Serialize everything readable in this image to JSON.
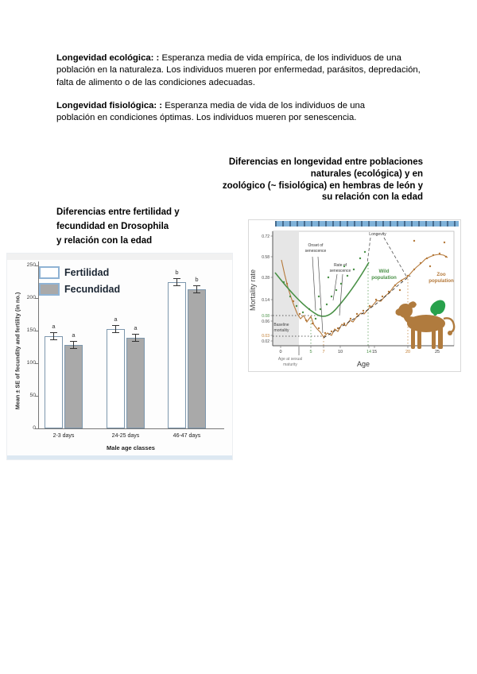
{
  "paragraphs": [
    {
      "lead": "Longevidad ecológica: :",
      "body": " Esperanza media de vida empírica, de los individuos de una población en la naturaleza. Los individuos mueren por enfermedad, parásitos, depredación, falta de alimento o de las condiciones adecuadas."
    },
    {
      "lead": "Longevidad fisiológica: :",
      "body": " Esperanza media de vida de los individuos de una población en condiciones óptimas. Los individuos mueren por senescencia."
    }
  ],
  "heading_right": {
    "lines": [
      "Diferencias en longevidad entre poblaciones",
      "naturales (ecológica) y en",
      "zoológico (~ fisiológica) en hembras de león y",
      "su relación con la edad"
    ]
  },
  "heading_left": {
    "lines": [
      "Diferencias entre fertilidad y",
      "fecundidad en Drosophila",
      "y relación con la edad"
    ]
  },
  "chart_data": [
    {
      "type": "bar",
      "categories": [
        "2-3 days",
        "24-25 days",
        "46-47 days"
      ],
      "series": [
        {
          "name": "Fertilidad",
          "values": [
            142,
            152,
            225
          ],
          "sig": [
            "a",
            "a",
            "b"
          ],
          "fill": "#ffffff",
          "border": "#7d97ad"
        },
        {
          "name": "Fecundidad",
          "values": [
            128,
            139,
            213
          ],
          "sig": [
            "a",
            "a",
            "b"
          ],
          "fill": "#a9a9a9",
          "border": "#7d97ad"
        }
      ],
      "error_se": 5,
      "xlabel": "Male age classes",
      "ylabel": "Mean ± SE of fecundity and fertility (in no.)",
      "yticks": [
        0,
        50,
        100,
        150,
        200,
        250
      ],
      "ylim": [
        0,
        260
      ],
      "legend_position": "top-left",
      "grid": false
    },
    {
      "type": "line",
      "xlabel": "Age",
      "ylabel": "Mortality rate",
      "yscale": "log",
      "xticks": [
        {
          "label": "0",
          "color": "#333333"
        },
        {
          "label": "5",
          "color": "#4a9147"
        },
        {
          "label": "7",
          "color": "#c07b2e"
        },
        {
          "label": "10",
          "color": "#333333"
        },
        {
          "label": "14",
          "color": "#4a9147"
        },
        {
          "label": "15",
          "color": "#333333"
        },
        {
          "label": "20",
          "color": "#c07b2e"
        },
        {
          "label": "25",
          "color": "#333333"
        }
      ],
      "yticks": [
        {
          "label": "0.72",
          "color": "#444444"
        },
        {
          "label": "0.58",
          "color": "#444444"
        },
        {
          "label": "0.28",
          "color": "#444444"
        },
        {
          "label": "0.14",
          "color": "#444444"
        },
        {
          "label": "0.08",
          "color": "#4a9147"
        },
        {
          "label": "0.06",
          "color": "#444444"
        },
        {
          "label": "0.03",
          "color": "#c07b2e"
        },
        {
          "label": "0.02",
          "color": "#444444"
        }
      ],
      "series": [
        {
          "name": "Wild population",
          "color": "#4a9147",
          "x": [
            0,
            1,
            2,
            3,
            4,
            5,
            6,
            7,
            8,
            9,
            10,
            11,
            12,
            13,
            14
          ],
          "y": [
            0.28,
            0.22,
            0.17,
            0.13,
            0.1,
            0.08,
            0.08,
            0.09,
            0.1,
            0.12,
            0.15,
            0.19,
            0.25,
            0.33,
            0.45
          ]
        },
        {
          "name": "Zoo population",
          "color": "#b5793a",
          "x": [
            0,
            1,
            2,
            3,
            4,
            5,
            6,
            7,
            8,
            9,
            10,
            11,
            12,
            13,
            14,
            15,
            16,
            17,
            18,
            19,
            20,
            21,
            22,
            23,
            24,
            25,
            26
          ],
          "y": [
            0.55,
            0.3,
            0.18,
            0.11,
            0.07,
            0.06,
            0.04,
            0.03,
            0.04,
            0.04,
            0.05,
            0.05,
            0.06,
            0.07,
            0.08,
            0.1,
            0.12,
            0.14,
            0.17,
            0.22,
            0.28,
            0.33,
            0.4,
            0.48,
            0.55,
            0.58,
            0.56
          ]
        }
      ],
      "annotations": {
        "onset_lines": [
          "Onset of",
          "senescence"
        ],
        "rate_lines": [
          "Rate of",
          "senescence"
        ],
        "longevity": "Longevity",
        "baseline_lines": [
          "Baseline",
          "mortality"
        ],
        "maturity_lines": [
          "Age at sexual",
          "maturity"
        ],
        "wild_lines": [
          "Wild",
          "population"
        ],
        "zoo_lines": [
          "Zoo",
          "population"
        ]
      },
      "markers": {
        "baseline_wild": 0.08,
        "baseline_zoo": 0.03,
        "onset_wild": 5,
        "onset_zoo": 7,
        "longevity_wild": 14,
        "longevity_zoo": 20
      }
    }
  ]
}
